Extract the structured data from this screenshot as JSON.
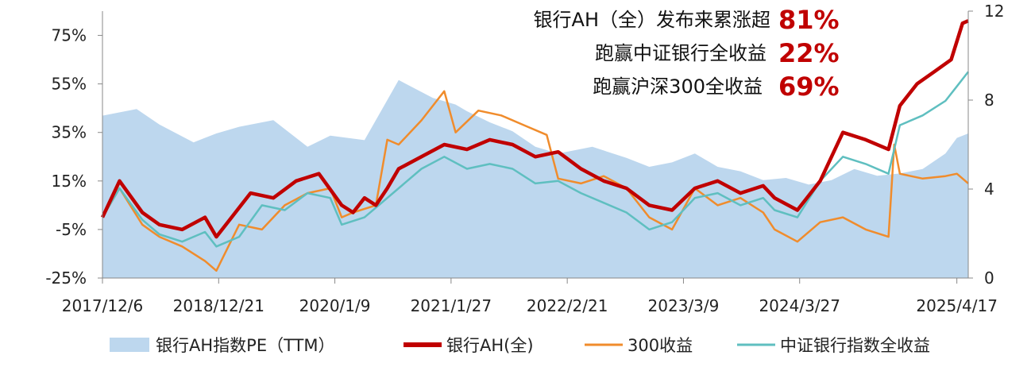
{
  "chart_data": {
    "type": "line",
    "title": "",
    "x_tick_labels": [
      "2017/12/6",
      "2018/12/21",
      "2020/1/9",
      "2021/1/27",
      "2022/2/21",
      "2023/3/9",
      "2024/3/27",
      "2025/4/17"
    ],
    "y_left": {
      "ticks": [
        "75%",
        "55%",
        "35%",
        "15%",
        "-5%",
        "-25%"
      ],
      "ylim": [
        -25,
        85
      ],
      "unit": "%"
    },
    "y_right": {
      "ticks": [
        "12",
        "8",
        "4",
        "0"
      ],
      "ylim": [
        0,
        12
      ]
    },
    "grid": false,
    "legend_position": "bottom",
    "legend": [
      "银行AH指数PE（TTM）",
      "银行AH(全)",
      "300收益",
      "中证银行指数全收益"
    ],
    "annotations": [
      {
        "label": "银行AH（全）发布来累涨超",
        "value": "81%"
      },
      {
        "label": "跑赢中证银行全收益",
        "value": "22%"
      },
      {
        "label": "跑赢沪深300全收益",
        "value": "69%"
      }
    ],
    "series": [
      {
        "name": "银行AH指数PE（TTM）",
        "axis": "right",
        "style": "area",
        "color": "#bdd7ee",
        "x": [
          0,
          0.3,
          0.5,
          0.8,
          1.0,
          1.2,
          1.5,
          1.8,
          2.0,
          2.3,
          2.6,
          2.9,
          3.1,
          3.2,
          3.4,
          3.6,
          3.8,
          4.0,
          4.3,
          4.6,
          4.8,
          5.0,
          5.2,
          5.4,
          5.6,
          5.8,
          6.0,
          6.2,
          6.4,
          6.6,
          6.8,
          7.0,
          7.2,
          7.4,
          7.5,
          7.6
        ],
        "values": [
          7.3,
          7.6,
          6.9,
          6.1,
          6.5,
          6.8,
          7.1,
          5.9,
          6.4,
          6.2,
          8.9,
          8.1,
          7.8,
          7.5,
          7.0,
          6.6,
          5.9,
          5.6,
          5.9,
          5.4,
          5.0,
          5.2,
          5.6,
          5.0,
          4.8,
          4.4,
          4.5,
          4.2,
          4.4,
          4.9,
          4.6,
          4.7,
          4.9,
          5.6,
          6.3,
          6.5
        ]
      },
      {
        "name": "银行AH(全)",
        "axis": "left",
        "style": "line",
        "color": "#c00000",
        "x": [
          0,
          0.15,
          0.35,
          0.5,
          0.7,
          0.9,
          1.0,
          1.1,
          1.3,
          1.5,
          1.7,
          1.9,
          2.1,
          2.2,
          2.3,
          2.4,
          2.5,
          2.6,
          2.8,
          3.0,
          3.2,
          3.4,
          3.6,
          3.8,
          4.0,
          4.2,
          4.4,
          4.6,
          4.8,
          5.0,
          5.2,
          5.4,
          5.6,
          5.8,
          5.9,
          6.1,
          6.3,
          6.5,
          6.7,
          6.9,
          7.0,
          7.15,
          7.3,
          7.45,
          7.55,
          7.6
        ],
        "values": [
          0,
          15,
          2,
          -3,
          -5,
          0,
          -8,
          -2,
          10,
          8,
          15,
          18,
          5,
          2,
          8,
          5,
          12,
          20,
          25,
          30,
          28,
          32,
          30,
          25,
          27,
          20,
          15,
          12,
          5,
          3,
          12,
          15,
          10,
          13,
          8,
          3,
          15,
          35,
          32,
          28,
          46,
          55,
          60,
          65,
          80,
          81
        ]
      },
      {
        "name": "300收益",
        "axis": "left",
        "style": "line",
        "color": "#f08c2c",
        "x": [
          0,
          0.15,
          0.35,
          0.5,
          0.7,
          0.9,
          1.0,
          1.2,
          1.4,
          1.6,
          1.8,
          2.0,
          2.1,
          2.2,
          2.4,
          2.5,
          2.6,
          2.8,
          3.0,
          3.1,
          3.3,
          3.5,
          3.7,
          3.9,
          4.0,
          4.2,
          4.4,
          4.6,
          4.8,
          5.0,
          5.2,
          5.4,
          5.6,
          5.8,
          5.9,
          6.1,
          6.3,
          6.5,
          6.7,
          6.9,
          6.95,
          7.0,
          7.2,
          7.4,
          7.5,
          7.6
        ],
        "values": [
          0,
          12,
          -3,
          -8,
          -12,
          -18,
          -22,
          -3,
          -5,
          5,
          10,
          12,
          0,
          2,
          5,
          32,
          30,
          40,
          52,
          35,
          44,
          42,
          38,
          34,
          16,
          14,
          17,
          12,
          0,
          -5,
          12,
          5,
          8,
          2,
          -5,
          -10,
          -2,
          0,
          -5,
          -8,
          30,
          18,
          16,
          17,
          18,
          14
        ]
      },
      {
        "name": "中证银行指数全收益",
        "axis": "left",
        "style": "line",
        "color": "#5fbfc0",
        "x": [
          0,
          0.15,
          0.35,
          0.5,
          0.7,
          0.9,
          1.0,
          1.2,
          1.4,
          1.6,
          1.8,
          2.0,
          2.1,
          2.3,
          2.5,
          2.6,
          2.8,
          3.0,
          3.2,
          3.4,
          3.6,
          3.8,
          4.0,
          4.2,
          4.4,
          4.6,
          4.8,
          5.0,
          5.2,
          5.4,
          5.6,
          5.8,
          5.9,
          6.1,
          6.3,
          6.5,
          6.7,
          6.9,
          7.0,
          7.2,
          7.4,
          7.5,
          7.6
        ],
        "values": [
          0,
          12,
          -1,
          -7,
          -10,
          -6,
          -12,
          -8,
          5,
          3,
          10,
          8,
          -3,
          0,
          8,
          12,
          20,
          25,
          20,
          22,
          20,
          14,
          15,
          10,
          6,
          2,
          -5,
          -2,
          8,
          10,
          5,
          8,
          3,
          0,
          15,
          25,
          22,
          18,
          38,
          42,
          48,
          54,
          60
        ]
      }
    ]
  }
}
